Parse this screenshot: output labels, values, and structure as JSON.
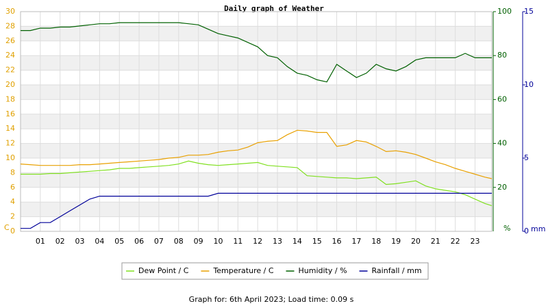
{
  "chart_data": {
    "type": "line",
    "title": "Daily graph of Weather",
    "footer": "Graph for: 6th April 2023; Load time: 0.09 s",
    "ylabel": "C",
    "y2label": "%",
    "y3label": "mm",
    "x": [
      0,
      0.5,
      1,
      1.5,
      2,
      2.5,
      3,
      3.5,
      4,
      4.5,
      5,
      5.5,
      6,
      6.5,
      7,
      7.5,
      8,
      8.5,
      9,
      9.5,
      10,
      10.5,
      11,
      11.5,
      12,
      12.5,
      13,
      13.5,
      14,
      14.5,
      15,
      15.5,
      16,
      16.5,
      17,
      17.5,
      18,
      18.5,
      19,
      19.5,
      20,
      20.5,
      21,
      21.5,
      22,
      22.5,
      23,
      23.5,
      23.85
    ],
    "xlim": [
      0,
      23.85
    ],
    "xticks": [
      {
        "value": 1,
        "label": "01"
      },
      {
        "value": 2,
        "label": "02"
      },
      {
        "value": 3,
        "label": "03"
      },
      {
        "value": 4,
        "label": "04"
      },
      {
        "value": 5,
        "label": "05"
      },
      {
        "value": 6,
        "label": "06"
      },
      {
        "value": 7,
        "label": "07"
      },
      {
        "value": 8,
        "label": "08"
      },
      {
        "value": 9,
        "label": "09"
      },
      10,
      11,
      12,
      13,
      14,
      15,
      16,
      17,
      18,
      19,
      20,
      21,
      22,
      23
    ],
    "ylim": [
      0,
      30
    ],
    "yticks": [
      0,
      2,
      4,
      6,
      8,
      10,
      12,
      14,
      16,
      18,
      20,
      22,
      24,
      26,
      28,
      30
    ],
    "y2lim": [
      0,
      100
    ],
    "y2ticks": [
      20,
      40,
      60,
      80,
      100
    ],
    "y3lim": [
      0,
      15
    ],
    "y3ticks": [
      0,
      5,
      10,
      15
    ],
    "bands": true,
    "grid": true,
    "series": [
      {
        "name": "Dew Point / C",
        "color": "#80e020",
        "axis": "y",
        "values": [
          7.8,
          7.8,
          7.8,
          7.9,
          7.9,
          8.0,
          8.1,
          8.2,
          8.3,
          8.4,
          8.6,
          8.6,
          8.7,
          8.8,
          8.9,
          9.0,
          9.2,
          9.6,
          9.3,
          9.1,
          9.0,
          9.1,
          9.2,
          9.3,
          9.4,
          9.0,
          8.9,
          8.8,
          8.7,
          7.6,
          7.5,
          7.4,
          7.3,
          7.3,
          7.2,
          7.3,
          7.4,
          6.4,
          6.5,
          6.7,
          6.9,
          6.2,
          5.8,
          5.6,
          5.4,
          5.0,
          4.4,
          3.8,
          3.5
        ]
      },
      {
        "name": "Temperature / C",
        "color": "#e8a000",
        "axis": "y",
        "values": [
          9.2,
          9.1,
          9.0,
          9.0,
          9.0,
          9.0,
          9.1,
          9.1,
          9.2,
          9.3,
          9.4,
          9.5,
          9.6,
          9.7,
          9.8,
          10.0,
          10.1,
          10.4,
          10.4,
          10.5,
          10.8,
          11.0,
          11.1,
          11.5,
          12.1,
          12.3,
          12.4,
          13.2,
          13.8,
          13.7,
          13.5,
          13.5,
          11.6,
          11.8,
          12.4,
          12.2,
          11.6,
          10.9,
          11.0,
          10.8,
          10.5,
          10.0,
          9.5,
          9.1,
          8.6,
          8.2,
          7.8,
          7.4,
          7.2
        ]
      },
      {
        "name": "Humidity / %",
        "color": "#006000",
        "axis": "y2",
        "values": [
          91.4,
          91.4,
          92.5,
          92.5,
          93,
          93,
          93.5,
          94,
          94.5,
          94.5,
          95,
          95,
          95,
          95,
          95,
          95,
          95,
          94.5,
          94,
          92,
          90,
          89,
          88,
          86,
          84,
          80,
          79,
          75,
          72,
          71,
          69,
          68,
          76,
          73,
          70,
          72,
          76,
          74,
          73,
          75,
          78,
          79,
          79,
          79,
          79,
          81,
          79,
          79,
          79
        ]
      },
      {
        "name": "Rainfall / mm",
        "color": "#000099",
        "axis": "y3",
        "values": [
          0.2,
          0.2,
          0.6,
          0.6,
          1.0,
          1.4,
          1.8,
          2.2,
          2.4,
          2.4,
          2.4,
          2.4,
          2.4,
          2.4,
          2.4,
          2.4,
          2.4,
          2.4,
          2.4,
          2.4,
          2.6,
          2.6,
          2.6,
          2.6,
          2.6,
          2.6,
          2.6,
          2.6,
          2.6,
          2.6,
          2.6,
          2.6,
          2.6,
          2.6,
          2.6,
          2.6,
          2.6,
          2.6,
          2.6,
          2.6,
          2.6,
          2.6,
          2.6,
          2.6,
          2.6,
          2.6,
          2.6,
          2.6,
          2.6
        ]
      }
    ]
  }
}
